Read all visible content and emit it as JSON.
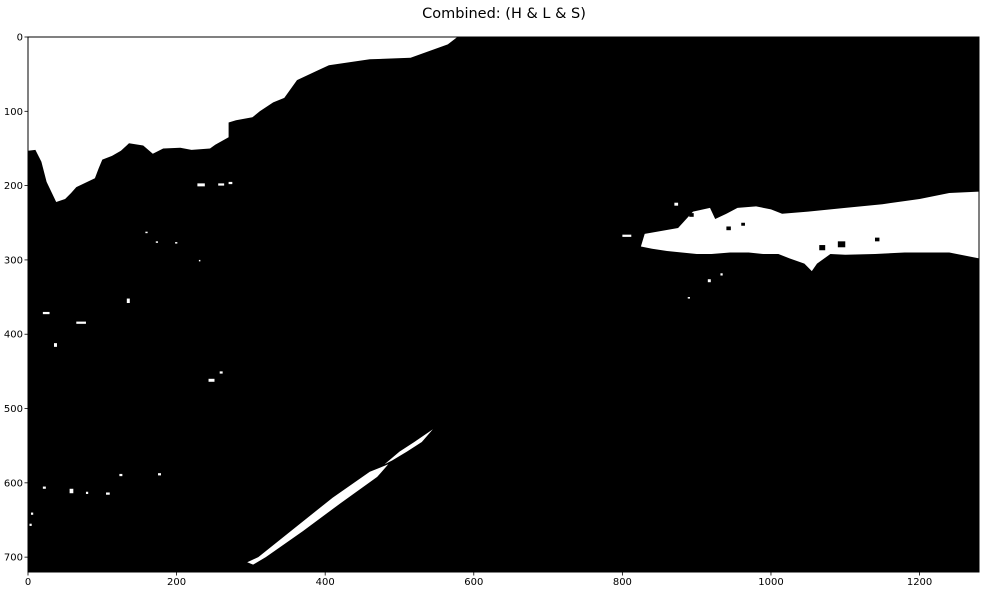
{
  "chart_data": {
    "type": "heatmap",
    "title": "Combined: (H & L & S)",
    "xlabel": "",
    "ylabel": "",
    "xlim": [
      0,
      1280
    ],
    "ylim": [
      720,
      0
    ],
    "x_ticks": [
      0,
      200,
      400,
      600,
      800,
      1000,
      1200
    ],
    "y_ticks": [
      0,
      100,
      200,
      300,
      400,
      500,
      600,
      700
    ],
    "colormap": {
      "0": "#000000",
      "1": "#ffffff"
    },
    "grid": false,
    "regions_value_1": [
      {
        "name": "sky-region",
        "polygon": [
          [
            0,
            0
          ],
          [
            578,
            0
          ],
          [
            565,
            10
          ],
          [
            515,
            28
          ],
          [
            460,
            30
          ],
          [
            405,
            38
          ],
          [
            390,
            45
          ],
          [
            362,
            58
          ],
          [
            345,
            82
          ],
          [
            330,
            88
          ],
          [
            312,
            100
          ],
          [
            302,
            108
          ],
          [
            280,
            112
          ],
          [
            270,
            115
          ],
          [
            270,
            135
          ],
          [
            252,
            145
          ],
          [
            245,
            150
          ],
          [
            220,
            152
          ],
          [
            205,
            149
          ],
          [
            182,
            150
          ],
          [
            168,
            157
          ],
          [
            155,
            146
          ],
          [
            136,
            143
          ],
          [
            125,
            153
          ],
          [
            113,
            160
          ],
          [
            100,
            165
          ],
          [
            95,
            177
          ],
          [
            90,
            190
          ],
          [
            65,
            202
          ],
          [
            58,
            210
          ],
          [
            50,
            218
          ],
          [
            38,
            222
          ],
          [
            25,
            195
          ],
          [
            18,
            168
          ],
          [
            10,
            152
          ],
          [
            0,
            153
          ]
        ]
      },
      {
        "name": "right-lane-region",
        "polygon": [
          [
            830,
            265
          ],
          [
            875,
            257
          ],
          [
            895,
            235
          ],
          [
            918,
            230
          ],
          [
            925,
            245
          ],
          [
            940,
            238
          ],
          [
            955,
            230
          ],
          [
            980,
            228
          ],
          [
            1000,
            232
          ],
          [
            1015,
            238
          ],
          [
            1050,
            235
          ],
          [
            1100,
            230
          ],
          [
            1150,
            225
          ],
          [
            1200,
            218
          ],
          [
            1240,
            210
          ],
          [
            1280,
            208
          ],
          [
            1280,
            298
          ],
          [
            1240,
            290
          ],
          [
            1180,
            290
          ],
          [
            1140,
            292
          ],
          [
            1100,
            293
          ],
          [
            1080,
            292
          ],
          [
            1062,
            305
          ],
          [
            1055,
            315
          ],
          [
            1045,
            305
          ],
          [
            1025,
            298
          ],
          [
            1010,
            292
          ],
          [
            990,
            292
          ],
          [
            970,
            290
          ],
          [
            945,
            290
          ],
          [
            920,
            292
          ],
          [
            900,
            292
          ],
          [
            880,
            290
          ],
          [
            860,
            288
          ],
          [
            840,
            285
          ],
          [
            825,
            282
          ]
        ]
      },
      {
        "name": "left-lane-line",
        "polygon": [
          [
            295,
            707
          ],
          [
            310,
            700
          ],
          [
            360,
            660
          ],
          [
            410,
            620
          ],
          [
            460,
            585
          ],
          [
            485,
            575
          ],
          [
            470,
            592
          ],
          [
            420,
            628
          ],
          [
            370,
            665
          ],
          [
            320,
            700
          ],
          [
            303,
            710
          ]
        ]
      },
      {
        "name": "left-lane-dashes",
        "polygon": [
          [
            480,
            575
          ],
          [
            500,
            558
          ],
          [
            520,
            545
          ],
          [
            545,
            528
          ],
          [
            530,
            545
          ],
          [
            510,
            558
          ],
          [
            490,
            570
          ]
        ]
      }
    ],
    "blobs_value_1": [
      [
        442,
        10,
        4,
        6
      ],
      [
        245,
        122,
        4,
        3
      ],
      [
        215,
        128,
        3,
        2
      ],
      [
        20,
        370,
        9,
        3
      ],
      [
        65,
        383,
        13,
        3
      ],
      [
        35,
        412,
        4,
        5
      ],
      [
        133,
        352,
        4,
        6
      ],
      [
        243,
        460,
        8,
        4
      ],
      [
        258,
        450,
        4,
        3
      ],
      [
        228,
        197,
        10,
        4
      ],
      [
        256,
        197,
        8,
        3
      ],
      [
        270,
        195,
        5,
        3
      ],
      [
        158,
        262,
        3,
        2
      ],
      [
        172,
        275,
        3,
        2
      ],
      [
        198,
        276,
        3,
        2
      ],
      [
        230,
        300,
        2,
        2
      ],
      [
        800,
        266,
        12,
        3
      ],
      [
        870,
        223,
        5,
        4
      ],
      [
        915,
        326,
        4,
        4
      ],
      [
        932,
        318,
        3,
        3
      ],
      [
        888,
        350,
        3,
        2
      ],
      [
        1160,
        276,
        6,
        3
      ],
      [
        1120,
        280,
        4,
        4
      ],
      [
        20,
        605,
        4,
        3
      ],
      [
        56,
        608,
        5,
        6
      ],
      [
        78,
        612,
        3,
        3
      ],
      [
        105,
        613,
        5,
        3
      ],
      [
        123,
        588,
        4,
        3
      ],
      [
        175,
        587,
        4,
        3
      ],
      [
        4,
        640,
        3,
        3
      ],
      [
        2,
        655,
        3,
        3
      ],
      [
        55,
        198,
        3,
        3
      ],
      [
        48,
        212,
        3,
        3
      ]
    ],
    "blobs_value_0": [
      [
        1090,
        275,
        10,
        8
      ],
      [
        1065,
        280,
        8,
        7
      ],
      [
        1140,
        270,
        6,
        5
      ],
      [
        940,
        255,
        6,
        5
      ],
      [
        960,
        250,
        5,
        4
      ],
      [
        890,
        237,
        6,
        5
      ]
    ]
  }
}
